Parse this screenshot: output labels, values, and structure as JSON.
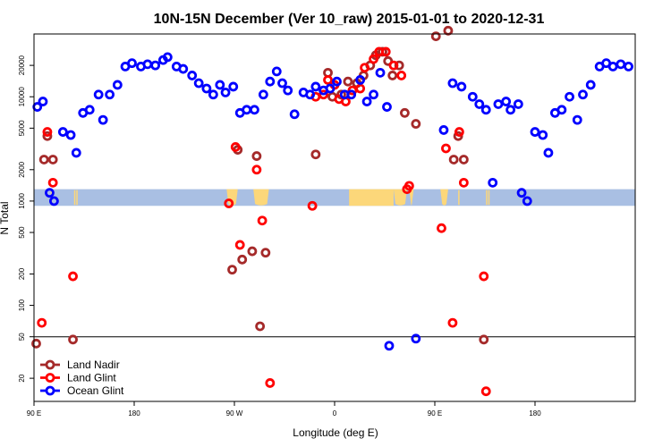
{
  "chart_data": {
    "type": "scatter",
    "title": "10N-15N December (Ver 10_raw)   2015-01-01 to 2020-12-31",
    "xlabel": "Longitude (deg E)",
    "ylabel": "N Total",
    "x_scale": "longitude, 90 E to 180 (wrapping through 0)",
    "y_scale": "log",
    "ylim": [
      12,
      40000
    ],
    "x_ticks": [
      "90 E",
      "180",
      "90 W",
      "0",
      "90 E",
      "180"
    ],
    "y_ticks": [
      20,
      50,
      100,
      200,
      500,
      1000,
      2000,
      5000,
      10000,
      20000
    ],
    "reference_line": 50,
    "legend_position": "bottom-left",
    "background_band": {
      "low": 900,
      "high": 1300,
      "color": "#a9bfe3",
      "overlay_color": "#fcd77a"
    },
    "series": [
      {
        "name": "Land Nadir",
        "color": "#a52a2a",
        "points": [
          [
            92,
            43
          ],
          [
            99,
            2500
          ],
          [
            102,
            4200
          ],
          [
            107,
            2500
          ],
          [
            125,
            47
          ],
          [
            268,
            220
          ],
          [
            273,
            3100
          ],
          [
            277,
            275
          ],
          [
            286,
            330
          ],
          [
            290,
            2700
          ],
          [
            293,
            63
          ],
          [
            298,
            320
          ],
          [
            343,
            2800
          ],
          [
            354,
            17000
          ],
          [
            358,
            10000
          ],
          [
            366,
            10500
          ],
          [
            372,
            14000
          ],
          [
            380,
            13500
          ],
          [
            386,
            16000
          ],
          [
            392,
            20000
          ],
          [
            397,
            25000
          ],
          [
            403,
            27000
          ],
          [
            408,
            22000
          ],
          [
            412,
            16000
          ],
          [
            418,
            20000
          ],
          [
            423,
            7000
          ],
          [
            433,
            5500
          ],
          [
            451,
            38000
          ],
          [
            462,
            43000
          ],
          [
            467,
            2500
          ],
          [
            471,
            4200
          ],
          [
            476,
            2500
          ],
          [
            494,
            47
          ]
        ]
      },
      {
        "name": "Land Glint",
        "color": "#ff0000",
        "points": [
          [
            97,
            68
          ],
          [
            102,
            4600
          ],
          [
            107,
            1500
          ],
          [
            125,
            190
          ],
          [
            265,
            950
          ],
          [
            271,
            3300
          ],
          [
            275,
            380
          ],
          [
            290,
            2000
          ],
          [
            295,
            650
          ],
          [
            302,
            18
          ],
          [
            340,
            900
          ],
          [
            343,
            10000
          ],
          [
            350,
            10500
          ],
          [
            354,
            14500
          ],
          [
            360,
            13000
          ],
          [
            364,
            9500
          ],
          [
            370,
            9000
          ],
          [
            376,
            11500
          ],
          [
            383,
            12000
          ],
          [
            387,
            19000
          ],
          [
            395,
            23000
          ],
          [
            400,
            27000
          ],
          [
            406,
            27000
          ],
          [
            413,
            20000
          ],
          [
            420,
            16000
          ],
          [
            425,
            1300
          ],
          [
            427,
            1400
          ],
          [
            456,
            550
          ],
          [
            460,
            3200
          ],
          [
            466,
            68
          ],
          [
            472,
            4600
          ],
          [
            476,
            1500
          ],
          [
            494,
            190
          ],
          [
            496,
            15
          ]
        ]
      },
      {
        "name": "Ocean Glint",
        "color": "#0000ff",
        "points": [
          [
            93,
            8000
          ],
          [
            98,
            9000
          ],
          [
            104,
            1200
          ],
          [
            108,
            1000
          ],
          [
            116,
            4600
          ],
          [
            123,
            4300
          ],
          [
            128,
            2900
          ],
          [
            134,
            7000
          ],
          [
            140,
            7500
          ],
          [
            148,
            10500
          ],
          [
            152,
            6000
          ],
          [
            158,
            10500
          ],
          [
            165,
            13000
          ],
          [
            172,
            19500
          ],
          [
            178,
            21000
          ],
          [
            186,
            19500
          ],
          [
            192,
            20500
          ],
          [
            199,
            20000
          ],
          [
            206,
            22500
          ],
          [
            210,
            24000
          ],
          [
            218,
            19500
          ],
          [
            224,
            18500
          ],
          [
            232,
            16000
          ],
          [
            238,
            13500
          ],
          [
            245,
            12000
          ],
          [
            251,
            10500
          ],
          [
            257,
            13000
          ],
          [
            262,
            11000
          ],
          [
            269,
            12500
          ],
          [
            275,
            7000
          ],
          [
            281,
            7500
          ],
          [
            288,
            7500
          ],
          [
            296,
            10500
          ],
          [
            302,
            14000
          ],
          [
            308,
            17500
          ],
          [
            313,
            13500
          ],
          [
            318,
            11500
          ],
          [
            324,
            6800
          ],
          [
            332,
            11000
          ],
          [
            338,
            10500
          ],
          [
            343,
            12500
          ],
          [
            350,
            11500
          ],
          [
            356,
            12000
          ],
          [
            362,
            14000
          ],
          [
            369,
            10500
          ],
          [
            375,
            10500
          ],
          [
            383,
            14500
          ],
          [
            389,
            9000
          ],
          [
            395,
            10500
          ],
          [
            401,
            17000
          ],
          [
            407,
            8000
          ],
          [
            409,
            41
          ],
          [
            433,
            48
          ],
          [
            458,
            4800
          ],
          [
            466,
            13500
          ],
          [
            474,
            12500
          ],
          [
            484,
            10000
          ],
          [
            490,
            8500
          ],
          [
            496,
            7500
          ],
          [
            502,
            1500
          ],
          [
            507,
            8500
          ],
          [
            514,
            9000
          ],
          [
            518,
            7500
          ],
          [
            525,
            8500
          ],
          [
            528,
            1200
          ],
          [
            533,
            1000
          ],
          [
            540,
            4600
          ],
          [
            547,
            4300
          ],
          [
            552,
            2900
          ],
          [
            558,
            7000
          ],
          [
            564,
            7500
          ],
          [
            571,
            10000
          ],
          [
            578,
            6000
          ],
          [
            583,
            10500
          ],
          [
            590,
            13000
          ],
          [
            598,
            19500
          ],
          [
            604,
            21000
          ],
          [
            610,
            19500
          ],
          [
            617,
            20500
          ],
          [
            624,
            19500
          ]
        ]
      }
    ]
  }
}
